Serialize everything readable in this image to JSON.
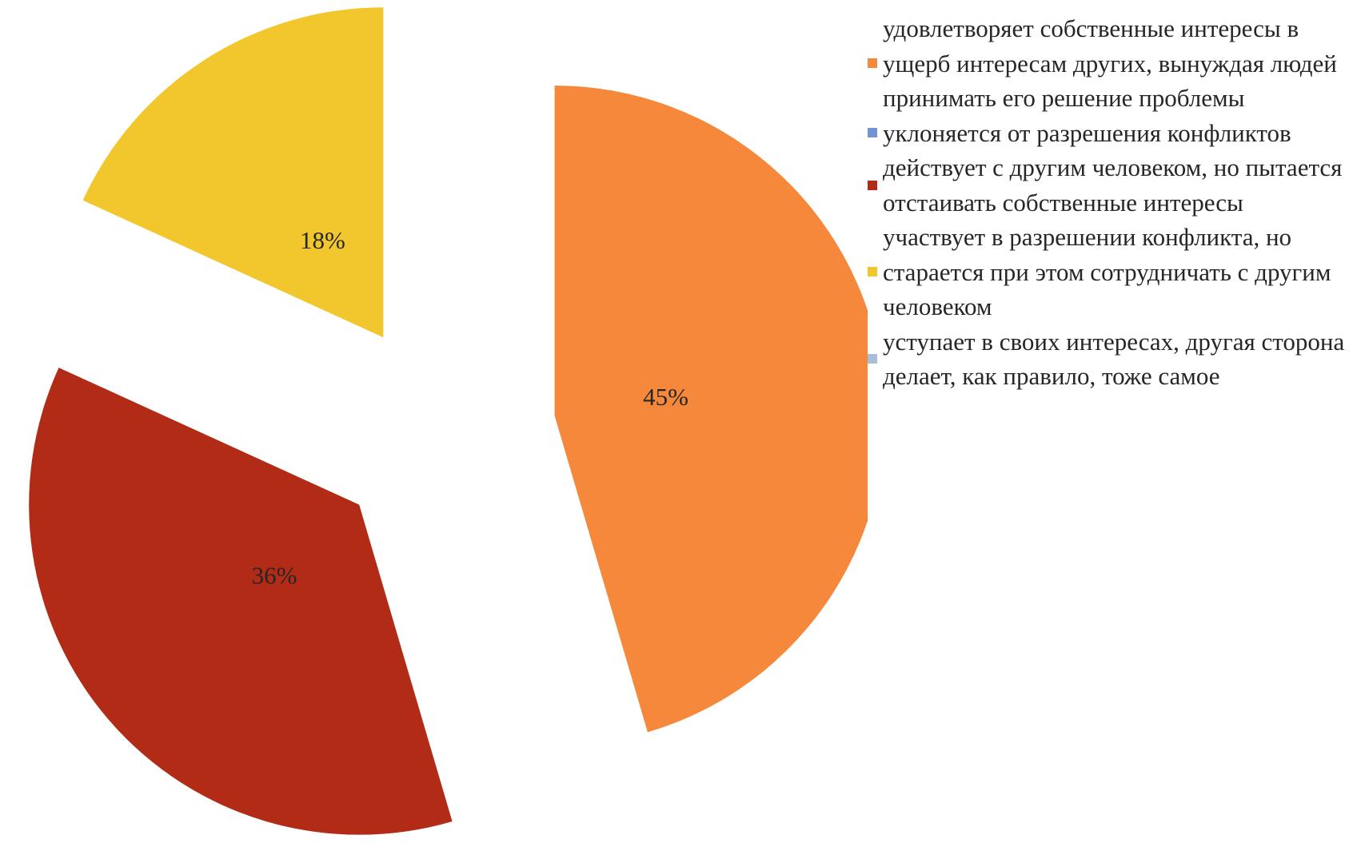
{
  "chart_data": {
    "type": "pie",
    "categories": [
      "удовлетворяет собственные интересы в ущерб интересам других, вынуждая людей принимать его решение проблемы",
      "уклоняется от разрешения конфликтов",
      "действует с другим человеком, но пытается отстаивать собственные интересы",
      "участвует в разрешении конфликта, но старается при этом сотрудничать с другим человеком",
      "уступает в своих интересах, другая сторона делает, как правило, тоже самое"
    ],
    "values": [
      45,
      0,
      36,
      18,
      0
    ],
    "value_labels": [
      "45%",
      null,
      "36%",
      "18%",
      null
    ],
    "colors": [
      "#f5883a",
      "#7394d4",
      "#b22b16",
      "#f2c72e",
      "#a8bcde"
    ],
    "legend": "right"
  }
}
